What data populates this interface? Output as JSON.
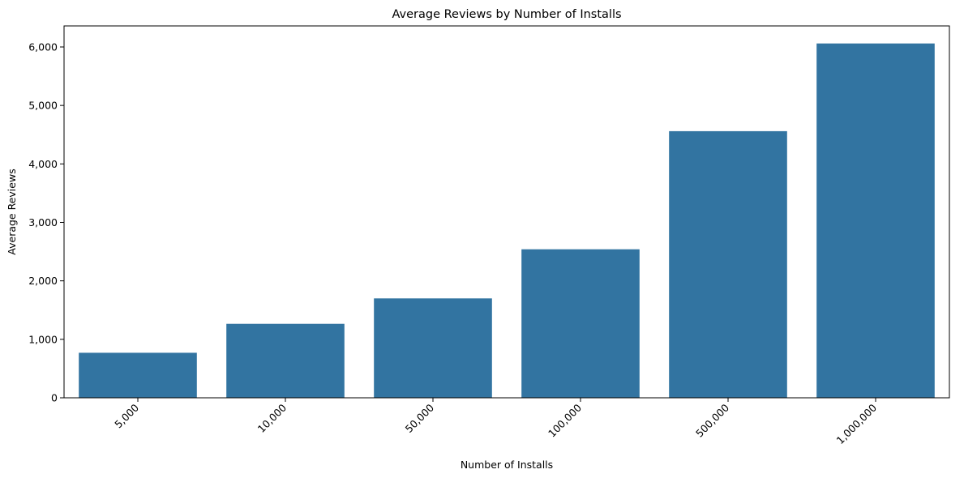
{
  "chart_data": {
    "type": "bar",
    "title": "Average Reviews by Number of Installs",
    "xlabel": "Number of Installs",
    "ylabel": "Average Reviews",
    "categories": [
      "5,000",
      "10,000",
      "50,000",
      "100,000",
      "500,000",
      "1,000,000"
    ],
    "values": [
      770,
      1265,
      1700,
      2540,
      4560,
      6060
    ],
    "ylim": [
      0,
      6360
    ],
    "yticks": [
      0,
      1000,
      2000,
      3000,
      4000,
      5000,
      6000
    ],
    "ytick_labels": [
      "0",
      "1,000",
      "2,000",
      "3,000",
      "4,000",
      "5,000",
      "6,000"
    ],
    "bar_color": "#3274a1",
    "grid": false,
    "legend": "none"
  }
}
